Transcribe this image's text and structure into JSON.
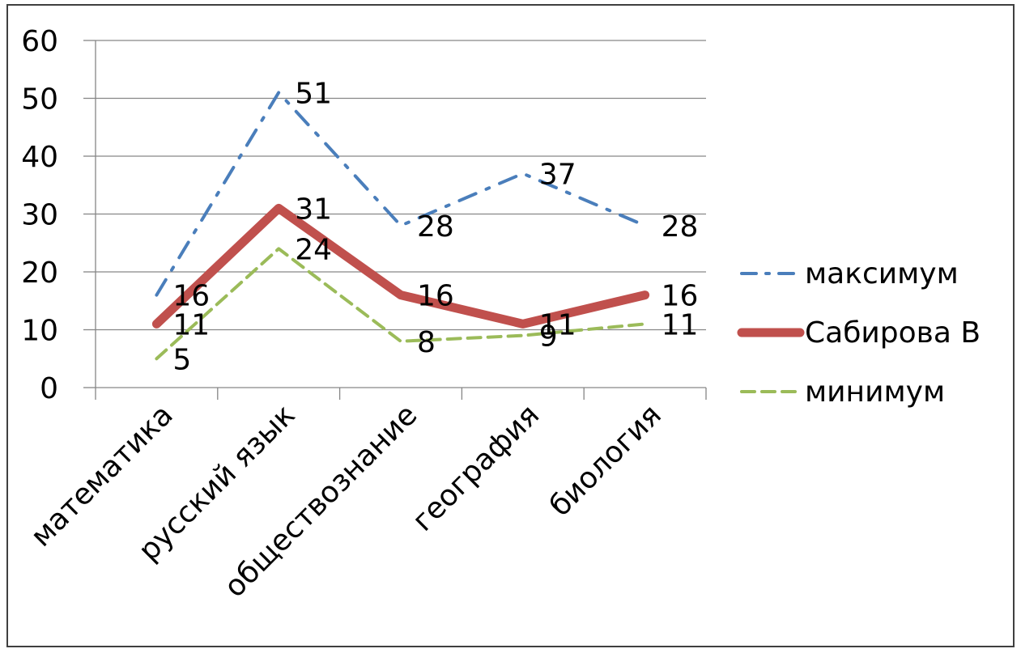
{
  "chart_data": {
    "type": "line",
    "categories": [
      "математика",
      "русский язык",
      "обществознание",
      "география",
      "биология"
    ],
    "series": [
      {
        "name": "максимум",
        "values": [
          16,
          51,
          28,
          37,
          28
        ],
        "color": "#4a7ebb",
        "dash": "dash-dot"
      },
      {
        "name": "Сабирова В",
        "values": [
          11,
          31,
          16,
          11,
          16
        ],
        "color": "#c0504d",
        "dash": "solid"
      },
      {
        "name": "минимум",
        "values": [
          5,
          24,
          8,
          9,
          11
        ],
        "color": "#9bbb59",
        "dash": "dash"
      }
    ],
    "ylim": [
      0,
      60
    ],
    "yticks": [
      0,
      10,
      20,
      30,
      40,
      50,
      60
    ],
    "grid": true,
    "data_labels": true,
    "legend_position": "right"
  }
}
